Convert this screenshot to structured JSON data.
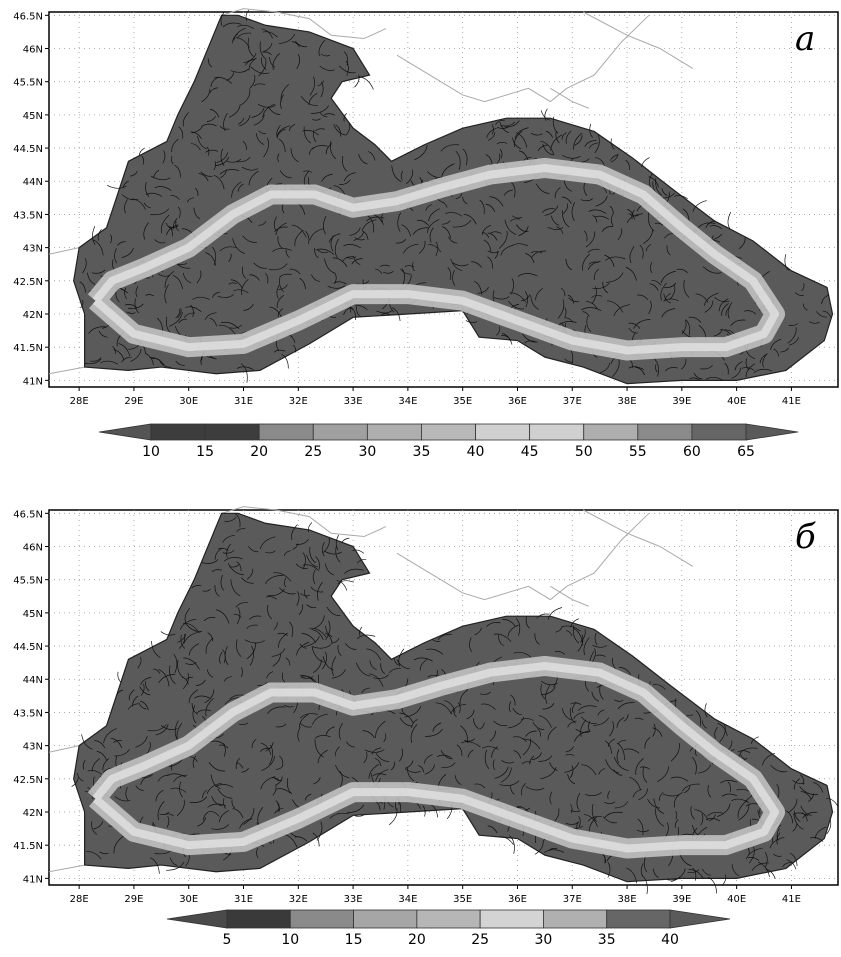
{
  "panels": [
    {
      "label": "а",
      "lat_ticks": [
        "46.5N",
        "46N",
        "45.5N",
        "45N",
        "44.5N",
        "44N",
        "43.5N",
        "43N",
        "42.5N",
        "42N",
        "41.5N",
        "41N"
      ],
      "lon_ticks": [
        "28E",
        "29E",
        "30E",
        "31E",
        "32E",
        "33E",
        "34E",
        "35E",
        "36E",
        "37E",
        "38E",
        "39E",
        "40E",
        "41E"
      ],
      "colorbar": {
        "ticks": [
          "10",
          "15",
          "20",
          "25",
          "30",
          "35",
          "40",
          "45",
          "50",
          "55",
          "60",
          "65"
        ],
        "colors": [
          "#555555",
          "#3d3d3d",
          "#3d3d3d",
          "#8a8a8a",
          "#a0a0a0",
          "#aeaeae",
          "#b9b9b9",
          "#d0d0d0",
          "#d0d0d0",
          "#aeaeae",
          "#8a8a8a",
          "#666666",
          "#5a5a5a"
        ]
      }
    },
    {
      "label": "б",
      "lat_ticks": [
        "46.5N",
        "46N",
        "45.5N",
        "45N",
        "44.5N",
        "44N",
        "43.5N",
        "43N",
        "42.5N",
        "42N",
        "41.5N",
        "41N"
      ],
      "lon_ticks": [
        "28E",
        "29E",
        "30E",
        "31E",
        "32E",
        "33E",
        "34E",
        "35E",
        "36E",
        "37E",
        "38E",
        "39E",
        "40E",
        "41E"
      ],
      "colorbar": {
        "ticks": [
          "5",
          "10",
          "15",
          "20",
          "25",
          "30",
          "35",
          "40"
        ],
        "colors": [
          "#4a4a4a",
          "#3a3a3a",
          "#8a8a8a",
          "#a6a6a6",
          "#b6b6b6",
          "#d4d4d4",
          "#b0b0b0",
          "#666666",
          "#5a5a5a"
        ]
      }
    }
  ]
}
